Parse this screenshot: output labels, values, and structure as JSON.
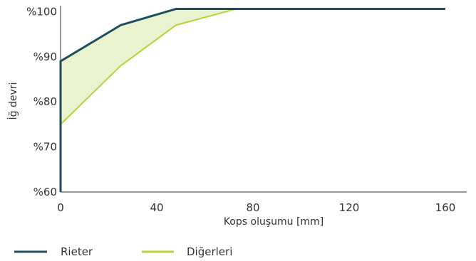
{
  "chart_data": {
    "type": "line",
    "xlabel": "Kops oluşumu [mm]",
    "ylabel": "İğ devri",
    "xlim": [
      0,
      160
    ],
    "ylim": [
      60,
      101
    ],
    "x_ticks": [
      0,
      40,
      80,
      120,
      160
    ],
    "x_tick_labels": [
      "0",
      "40",
      "80",
      "120",
      "160"
    ],
    "y_ticks": [
      60,
      70,
      80,
      90,
      100
    ],
    "y_tick_labels": [
      "%60",
      "%70",
      "%80",
      "%90",
      "%100"
    ],
    "grid": false,
    "legend_position": "bottom-left",
    "fill_between_series": true,
    "series": [
      {
        "name": "Rieter",
        "color": "#1e4e5c",
        "x": [
          0,
          0,
          25,
          48,
          160
        ],
        "y": [
          60,
          89,
          97,
          100.6,
          100.6
        ]
      },
      {
        "name": "Diğerleri",
        "color": "#b4d336",
        "x": [
          0,
          0,
          25,
          48,
          73
        ],
        "y": [
          60,
          75,
          88,
          97,
          100.6
        ]
      }
    ],
    "fill_color": "#eaf3d0"
  }
}
